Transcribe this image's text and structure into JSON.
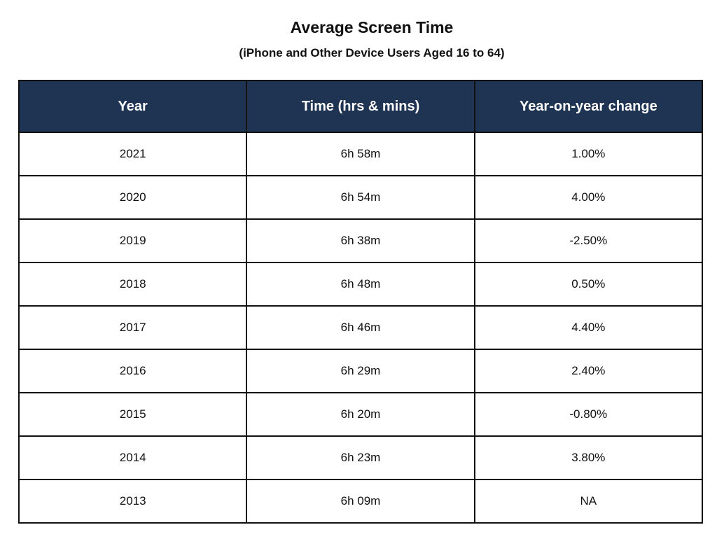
{
  "chart_data": {
    "type": "table",
    "title": "Average Screen Time",
    "subtitle": "(iPhone and Other Device Users Aged 16 to 64)",
    "columns": [
      "Year",
      "Time (hrs & mins)",
      "Year-on-year change"
    ],
    "rows": [
      [
        "2021",
        "6h 58m",
        "1.00%"
      ],
      [
        "2020",
        "6h 54m",
        "4.00%"
      ],
      [
        "2019",
        "6h 38m",
        "-2.50%"
      ],
      [
        "2018",
        "6h 48m",
        "0.50%"
      ],
      [
        "2017",
        "6h 46m",
        "4.40%"
      ],
      [
        "2016",
        "6h 29m",
        "2.40%"
      ],
      [
        "2015",
        "6h 20m",
        "-0.80%"
      ],
      [
        "2014",
        "6h 23m",
        "3.80%"
      ],
      [
        "2013",
        "6h 09m",
        "NA"
      ]
    ]
  },
  "colors": {
    "header_background": "#1f3352",
    "header_text": "#ffffff",
    "border": "#111111"
  }
}
